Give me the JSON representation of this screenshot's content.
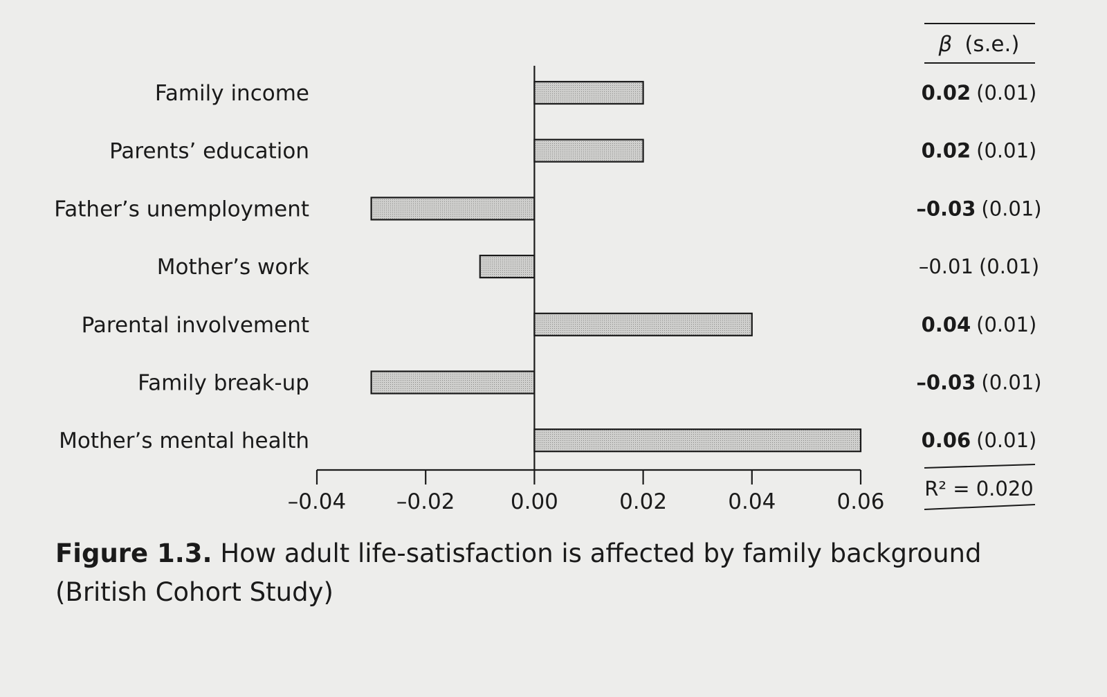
{
  "chart_data": {
    "type": "bar",
    "orientation": "horizontal",
    "categories": [
      "Family income",
      "Parents’ education",
      "Father’s unemployment",
      "Mother’s work",
      "Parental involvement",
      "Family break-up",
      "Mother’s mental health"
    ],
    "values": [
      0.02,
      0.02,
      -0.03,
      -0.01,
      0.04,
      -0.03,
      0.06
    ],
    "xlim": [
      -0.04,
      0.06
    ],
    "xticks": [
      -0.04,
      -0.02,
      0.0,
      0.02,
      0.04,
      0.06
    ],
    "xtick_labels": [
      "–0.04",
      "–0.02",
      "0.00",
      "0.02",
      "0.04",
      "0.06"
    ],
    "grid": false,
    "bar_fill": "#c9c9c7",
    "coef_table": {
      "header_beta": "β",
      "header_se": "(s.e.)",
      "rows": [
        {
          "beta": "0.02",
          "se": "(0.01)",
          "bold": true
        },
        {
          "beta": "0.02",
          "se": "(0.01)",
          "bold": true
        },
        {
          "beta": "–0.03",
          "se": "(0.01)",
          "bold": true
        },
        {
          "beta": "–0.01",
          "se": "(0.01)",
          "bold": false
        },
        {
          "beta": "0.04",
          "se": "(0.01)",
          "bold": true
        },
        {
          "beta": "–0.03",
          "se": "(0.01)",
          "bold": true
        },
        {
          "beta": "0.06",
          "se": "(0.01)",
          "bold": true
        }
      ],
      "r2": "R² = 0.020"
    }
  },
  "caption": {
    "figure_number": "Figure 1.3.",
    "text": "How adult life-satisfaction is affected by family background (British Cohort Study)"
  }
}
